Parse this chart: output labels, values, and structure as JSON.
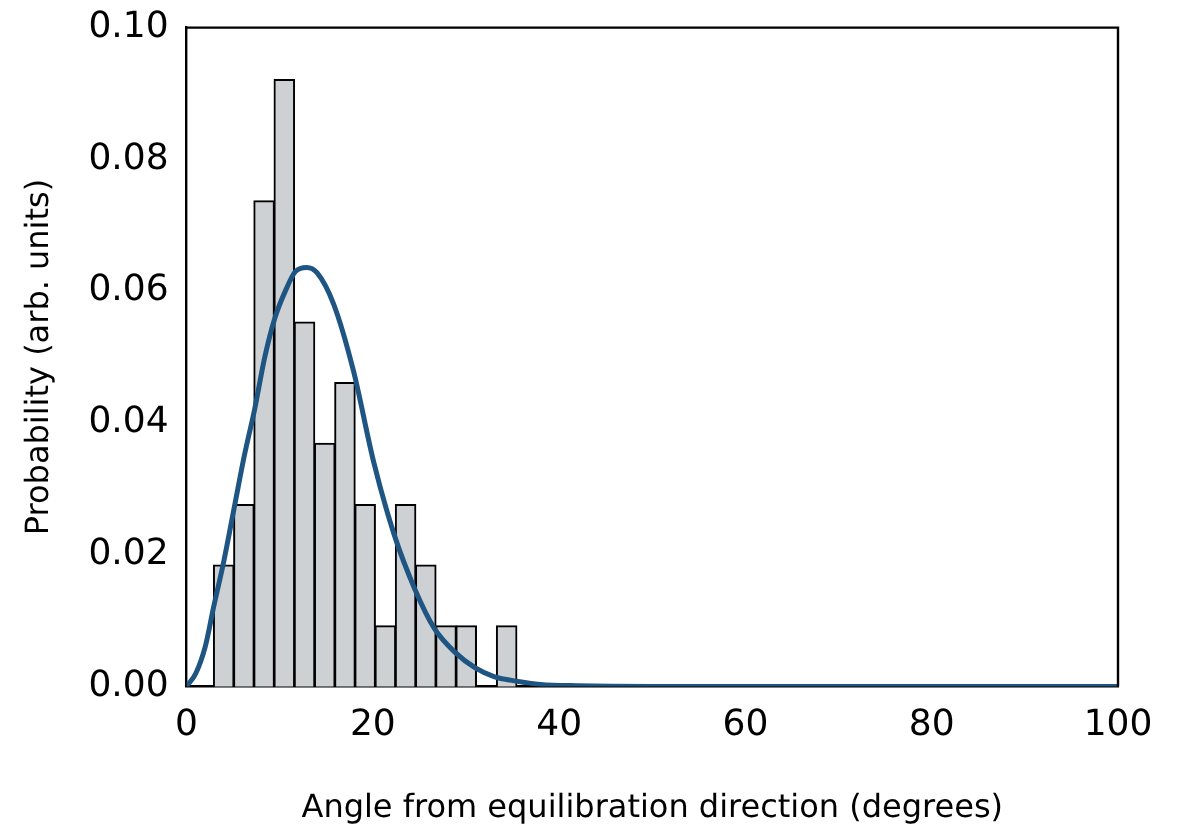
{
  "chart_data": {
    "type": "histogram",
    "xlabel": "Angle from equilibration direction (degrees)",
    "ylabel": "Probability (arb. units)",
    "bins": [
      2.9,
      5.07,
      7.24,
      9.41,
      11.58,
      13.75,
      15.92,
      18.09,
      20.26,
      22.43,
      24.6,
      26.77,
      28.94,
      31.11,
      33.28,
      35.45
    ],
    "values": [
      0.0184,
      0.0276,
      0.0737,
      0.0921,
      0.0553,
      0.0369,
      0.0461,
      0.0276,
      0.0092,
      0.0276,
      0.0184,
      0.0092,
      0.0092,
      0,
      0.0092
    ],
    "color": "#cdd1d3",
    "series": [
      {
        "type": "line",
        "color": "#1f5582",
        "x": [
          0,
          1,
          2,
          2.9,
          4,
          5.1,
          6.2,
          7.3,
          8.4,
          9.5,
          10.6,
          11.7,
          12.9,
          14,
          15.8,
          17.9,
          20.1,
          22.3,
          24.5,
          26.6,
          28.8,
          31,
          33,
          35.4,
          38,
          42,
          50,
          60,
          80,
          100
        ],
        "values": [
          0,
          0.002,
          0.006,
          0.012,
          0.019,
          0.027,
          0.035,
          0.042,
          0.05,
          0.056,
          0.06,
          0.063,
          0.0636,
          0.0628,
          0.058,
          0.048,
          0.034,
          0.023,
          0.0148,
          0.0088,
          0.0052,
          0.0028,
          0.0015,
          0.0008,
          0.0003,
          0.0001,
          0,
          0,
          0,
          0
        ]
      }
    ],
    "xlim": [
      0,
      100
    ],
    "xticks": [
      0,
      20,
      40,
      60,
      80,
      100
    ],
    "ylim": [
      0,
      0.1
    ],
    "yticks": [
      {
        "value": 0,
        "label": "0.00"
      },
      {
        "value": 0.02,
        "label": "0.02"
      },
      {
        "value": 0.04,
        "label": "0.04"
      },
      {
        "value": 0.06,
        "label": "0.06"
      },
      {
        "value": 0.08,
        "label": "0.08"
      },
      {
        "value": 0.1,
        "label": "0.10"
      }
    ],
    "grid": false,
    "legend": false,
    "marker": "none",
    "line_style": "solid"
  }
}
